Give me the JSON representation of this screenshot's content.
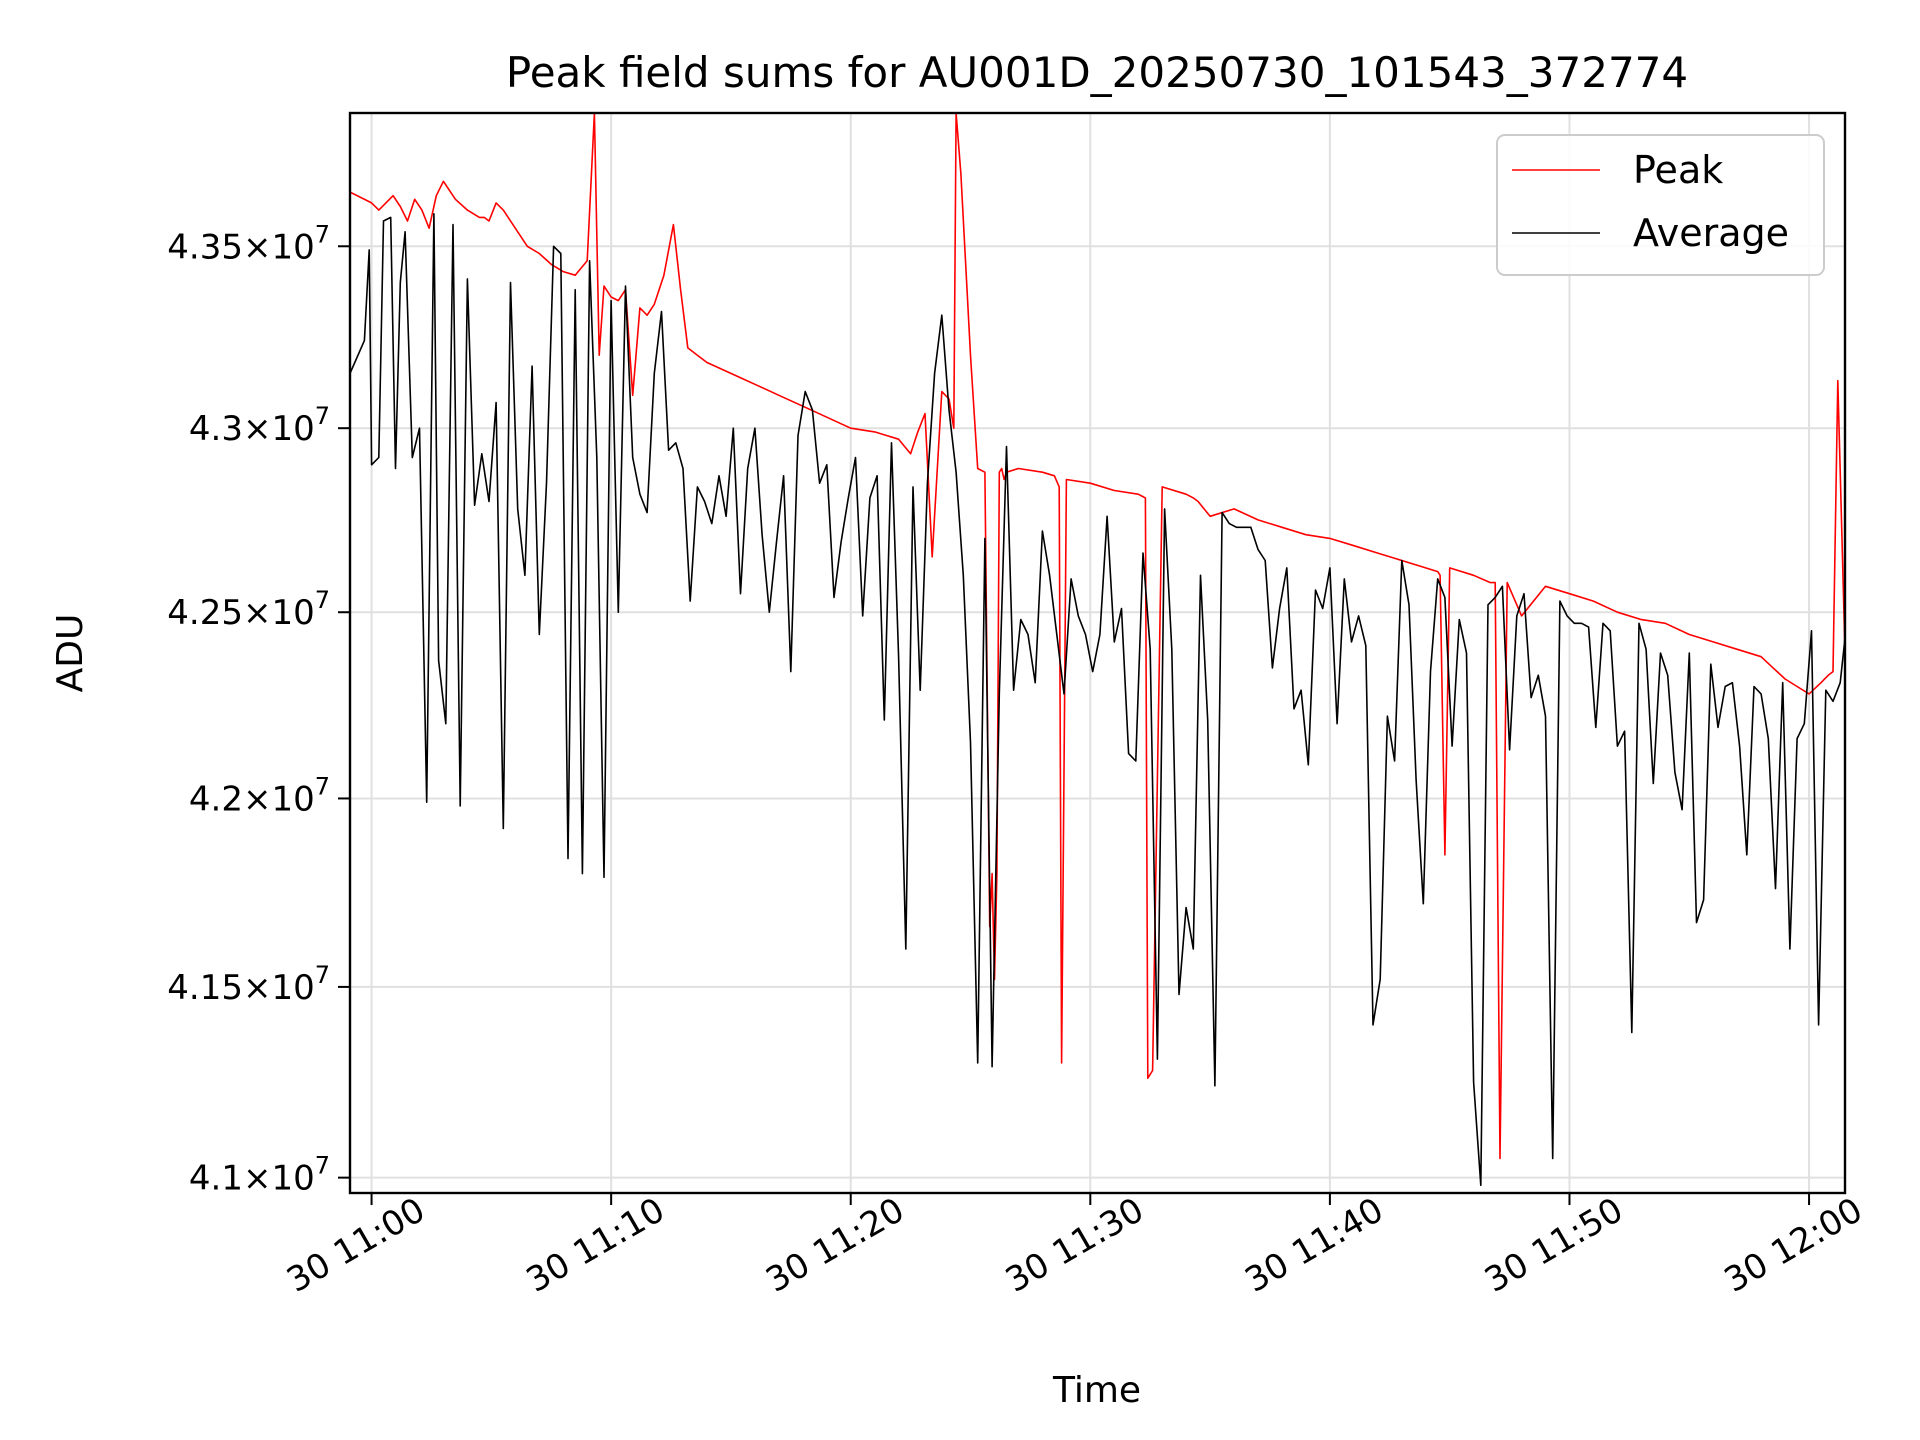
{
  "chart_data": {
    "type": "line",
    "title": "Peak field sums for AU001D_20250730_101543_372774",
    "xlabel": "Time",
    "ylabel": "ADU",
    "x_tick_labels": [
      "30 11:00",
      "30 11:10",
      "30 11:20",
      "30 11:30",
      "30 11:40",
      "30 11:50",
      "30 12:00"
    ],
    "y_tick_labels": [
      {
        "mantissa": "4.1",
        "exponent": "7"
      },
      {
        "mantissa": "4.15",
        "exponent": "7"
      },
      {
        "mantissa": "4.2",
        "exponent": "7"
      },
      {
        "mantissa": "4.25",
        "exponent": "7"
      },
      {
        "mantissa": "4.3",
        "exponent": "7"
      },
      {
        "mantissa": "4.35",
        "exponent": "7"
      }
    ],
    "y_ticks": [
      41000000,
      41500000,
      42000000,
      42500000,
      43000000,
      43500000
    ],
    "x_ticks_min": [
      0,
      10,
      20,
      30,
      40,
      50,
      60
    ],
    "xlim_min": [
      -0.9,
      61.5
    ],
    "ylim": [
      40960000,
      43870000
    ],
    "y_scale": "log",
    "grid": true,
    "legend_position": "upper right",
    "series": [
      {
        "name": "Peak",
        "color": "#ff0000",
        "x_min": [
          -0.9,
          0,
          0.3,
          0.9,
          1.2,
          1.5,
          1.8,
          2.1,
          2.4,
          2.7,
          3,
          3.5,
          4,
          4.5,
          4.7,
          4.9,
          5.2,
          5.5,
          6,
          6.5,
          7,
          7.5,
          8,
          8.5,
          9,
          9.3,
          9.5,
          9.7,
          10,
          10.3,
          10.6,
          10.9,
          11.2,
          11.5,
          11.8,
          12.2,
          12.6,
          12.9,
          13.2,
          13.6,
          14,
          15,
          16,
          17,
          18,
          19,
          20,
          21,
          22,
          22.5,
          22.8,
          23.1,
          23.4,
          23.8,
          24.1,
          24.3,
          24.4,
          24.6,
          25,
          25.3,
          25.6,
          25.8,
          25.9,
          26,
          26.1,
          26.2,
          26.3,
          26.4,
          26.5,
          27,
          28,
          28.5,
          28.7,
          28.8,
          29,
          30,
          31,
          32,
          32.3,
          32.4,
          32.6,
          33,
          34,
          34.3,
          34.5,
          35,
          36,
          37,
          38,
          39,
          40,
          41,
          42,
          43,
          44,
          44.5,
          44.6,
          44.8,
          45,
          46,
          46.7,
          46.9,
          47.1,
          47.4,
          48,
          49,
          50,
          51,
          52,
          53,
          54,
          55,
          56,
          57,
          58,
          58.5,
          59,
          59.5,
          60,
          60.5,
          60.8,
          61,
          61.2,
          61.5
        ],
        "y": [
          43650000,
          43620000,
          43600000,
          43640000,
          43610000,
          43570000,
          43630000,
          43600000,
          43550000,
          43640000,
          43680000,
          43630000,
          43600000,
          43580000,
          43580000,
          43570000,
          43620000,
          43600000,
          43550000,
          43500000,
          43480000,
          43450000,
          43430000,
          43420000,
          43460000,
          43870000,
          43200000,
          43390000,
          43360000,
          43350000,
          43380000,
          43090000,
          43330000,
          43310000,
          43340000,
          43420000,
          43560000,
          43380000,
          43220000,
          43200000,
          43180000,
          43150000,
          43120000,
          43090000,
          43060000,
          43030000,
          43000000,
          42990000,
          42970000,
          42930000,
          42990000,
          43040000,
          42650000,
          43100000,
          43080000,
          43000000,
          43870000,
          43700000,
          43200000,
          42890000,
          42880000,
          41660000,
          41800000,
          41520000,
          41800000,
          42880000,
          42890000,
          42860000,
          42880000,
          42890000,
          42880000,
          42870000,
          42840000,
          41300000,
          42860000,
          42850000,
          42830000,
          42820000,
          42810000,
          41260000,
          41280000,
          42840000,
          42820000,
          42810000,
          42800000,
          42760000,
          42780000,
          42750000,
          42730000,
          42710000,
          42700000,
          42680000,
          42660000,
          42640000,
          42620000,
          42610000,
          42600000,
          41850000,
          42620000,
          42600000,
          42580000,
          42580000,
          41050000,
          42580000,
          42490000,
          42570000,
          42550000,
          42530000,
          42500000,
          42480000,
          42470000,
          42440000,
          42420000,
          42400000,
          42380000,
          42350000,
          42320000,
          42300000,
          42280000,
          42310000,
          42330000,
          42340000,
          43130000,
          42390000,
          42300000
        ]
      },
      {
        "name": "Average",
        "color": "#000000",
        "x_min": [
          -0.9,
          -0.3,
          -0.1,
          0,
          0.3,
          0.5,
          0.8,
          1.0,
          1.2,
          1.4,
          1.7,
          2.0,
          2.3,
          2.6,
          2.8,
          3.1,
          3.4,
          3.7,
          4.0,
          4.3,
          4.6,
          4.9,
          5.2,
          5.5,
          5.8,
          6.1,
          6.4,
          6.7,
          7.0,
          7.3,
          7.6,
          7.9,
          8.2,
          8.5,
          8.8,
          9.1,
          9.4,
          9.7,
          10.0,
          10.3,
          10.6,
          10.9,
          11.2,
          11.5,
          11.8,
          12.1,
          12.4,
          12.7,
          13.0,
          13.3,
          13.6,
          13.9,
          14.2,
          14.5,
          14.8,
          15.1,
          15.4,
          15.7,
          16.0,
          16.3,
          16.6,
          16.9,
          17.2,
          17.5,
          17.8,
          18.1,
          18.4,
          18.7,
          19.0,
          19.3,
          19.6,
          19.9,
          20.2,
          20.5,
          20.8,
          21.1,
          21.4,
          21.7,
          22.0,
          22.3,
          22.6,
          22.9,
          23.2,
          23.5,
          23.8,
          24.1,
          24.4,
          24.7,
          25.0,
          25.3,
          25.6,
          25.9,
          26.2,
          26.5,
          26.8,
          27.1,
          27.4,
          27.7,
          28.0,
          28.3,
          28.6,
          28.9,
          29.2,
          29.5,
          29.8,
          30.1,
          30.4,
          30.7,
          31.0,
          31.3,
          31.6,
          31.9,
          32.2,
          32.5,
          32.8,
          33.1,
          33.4,
          33.7,
          34.0,
          34.3,
          34.6,
          34.9,
          35.2,
          35.5,
          35.8,
          36.1,
          36.4,
          36.7,
          37.0,
          37.3,
          37.6,
          37.9,
          38.2,
          38.5,
          38.8,
          39.1,
          39.4,
          39.7,
          40.0,
          40.3,
          40.6,
          40.9,
          41.2,
          41.5,
          41.8,
          42.1,
          42.4,
          42.7,
          43.0,
          43.3,
          43.6,
          43.9,
          44.2,
          44.5,
          44.8,
          45.1,
          45.4,
          45.7,
          46.0,
          46.3,
          46.6,
          46.9,
          47.2,
          47.5,
          47.8,
          48.1,
          48.4,
          48.7,
          49.0,
          49.3,
          49.6,
          49.9,
          50.2,
          50.5,
          50.8,
          51.1,
          51.4,
          51.7,
          52.0,
          52.3,
          52.6,
          52.9,
          53.2,
          53.5,
          53.8,
          54.1,
          54.4,
          54.7,
          55.0,
          55.3,
          55.6,
          55.9,
          56.2,
          56.5,
          56.8,
          57.1,
          57.4,
          57.7,
          58.0,
          58.3,
          58.6,
          58.9,
          59.2,
          59.5,
          59.8,
          60.1,
          60.4,
          60.7,
          61.0,
          61.3,
          61.5
        ],
        "y": [
          43150000,
          43240000,
          43490000,
          42900000,
          42920000,
          43570000,
          43580000,
          42890000,
          43400000,
          43540000,
          42920000,
          43000000,
          41990000,
          43590000,
          42370000,
          42200000,
          43560000,
          41980000,
          43410000,
          42790000,
          42930000,
          42800000,
          43070000,
          41920000,
          43400000,
          42780000,
          42600000,
          43170000,
          42440000,
          42850000,
          43500000,
          43480000,
          41840000,
          43380000,
          41800000,
          43460000,
          42920000,
          41790000,
          43350000,
          42500000,
          43390000,
          42920000,
          42820000,
          42770000,
          43150000,
          43320000,
          42940000,
          42960000,
          42890000,
          42530000,
          42840000,
          42800000,
          42740000,
          42870000,
          42760000,
          43000000,
          42550000,
          42890000,
          43000000,
          42710000,
          42500000,
          42690000,
          42870000,
          42340000,
          42980000,
          43100000,
          43050000,
          42850000,
          42900000,
          42540000,
          42690000,
          42810000,
          42920000,
          42490000,
          42810000,
          42870000,
          42210000,
          42960000,
          42380000,
          41600000,
          42840000,
          42290000,
          42850000,
          43150000,
          43310000,
          43050000,
          42880000,
          42600000,
          42150000,
          41300000,
          42700000,
          41290000,
          42280000,
          42950000,
          42290000,
          42480000,
          42440000,
          42310000,
          42720000,
          42600000,
          42440000,
          42280000,
          42590000,
          42490000,
          42440000,
          42340000,
          42440000,
          42760000,
          42420000,
          42510000,
          42120000,
          42100000,
          42660000,
          42400000,
          41310000,
          42780000,
          42400000,
          41480000,
          41710000,
          41600000,
          42600000,
          42210000,
          41240000,
          42770000,
          42740000,
          42730000,
          42730000,
          42730000,
          42670000,
          42640000,
          42350000,
          42510000,
          42620000,
          42240000,
          42290000,
          42090000,
          42560000,
          42510000,
          42620000,
          42200000,
          42590000,
          42420000,
          42490000,
          42410000,
          41400000,
          41520000,
          42220000,
          42100000,
          42640000,
          42520000,
          42050000,
          41720000,
          42340000,
          42590000,
          42540000,
          42140000,
          42480000,
          42390000,
          41250000,
          40980000,
          42520000,
          42540000,
          42570000,
          42130000,
          42490000,
          42550000,
          42270000,
          42330000,
          42220000,
          41050000,
          42530000,
          42490000,
          42470000,
          42470000,
          42460000,
          42190000,
          42470000,
          42450000,
          42140000,
          42180000,
          41380000,
          42470000,
          42400000,
          42040000,
          42390000,
          42330000,
          42070000,
          41970000,
          42390000,
          41670000,
          41730000,
          42360000,
          42190000,
          42300000,
          42310000,
          42140000,
          41850000,
          42300000,
          42280000,
          42160000,
          41760000,
          42310000,
          41600000,
          42160000,
          42200000,
          42450000,
          41400000,
          42290000,
          42260000,
          42310000,
          42430000,
          41700000,
          40990000,
          41440000,
          42460000,
          42230000,
          42300000,
          42400000,
          41900000
        ]
      }
    ]
  }
}
